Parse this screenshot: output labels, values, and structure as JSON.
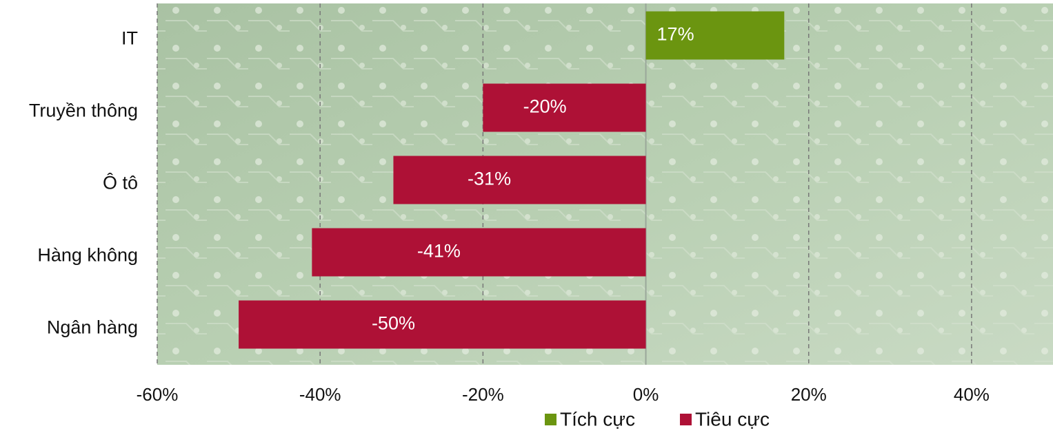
{
  "chart_data": {
    "type": "hbar",
    "categories": [
      "IT",
      "Truyền thông",
      "Ô tô",
      "Hàng không",
      "Ngân hàng"
    ],
    "series": [
      {
        "name": "Tích cực",
        "color": "#6b9510",
        "values": [
          17,
          null,
          null,
          null,
          null
        ],
        "value_labels": [
          "17%",
          null,
          null,
          null,
          null
        ]
      },
      {
        "name": "Tiêu cực",
        "color": "#ae1136",
        "values": [
          null,
          -20,
          -31,
          -41,
          -50
        ],
        "value_labels": [
          null,
          "-20%",
          "-31%",
          "-41%",
          "-50%"
        ]
      }
    ],
    "xlim": [
      -60,
      50
    ],
    "xticks": [
      {
        "value": -60,
        "label": "-60%"
      },
      {
        "value": -40,
        "label": "-40%"
      },
      {
        "value": -20,
        "label": "-20%"
      },
      {
        "value": 0,
        "label": "0%"
      },
      {
        "value": 20,
        "label": "20%"
      },
      {
        "value": 40,
        "label": "40%"
      }
    ],
    "grid": true,
    "legend": "bottom"
  }
}
